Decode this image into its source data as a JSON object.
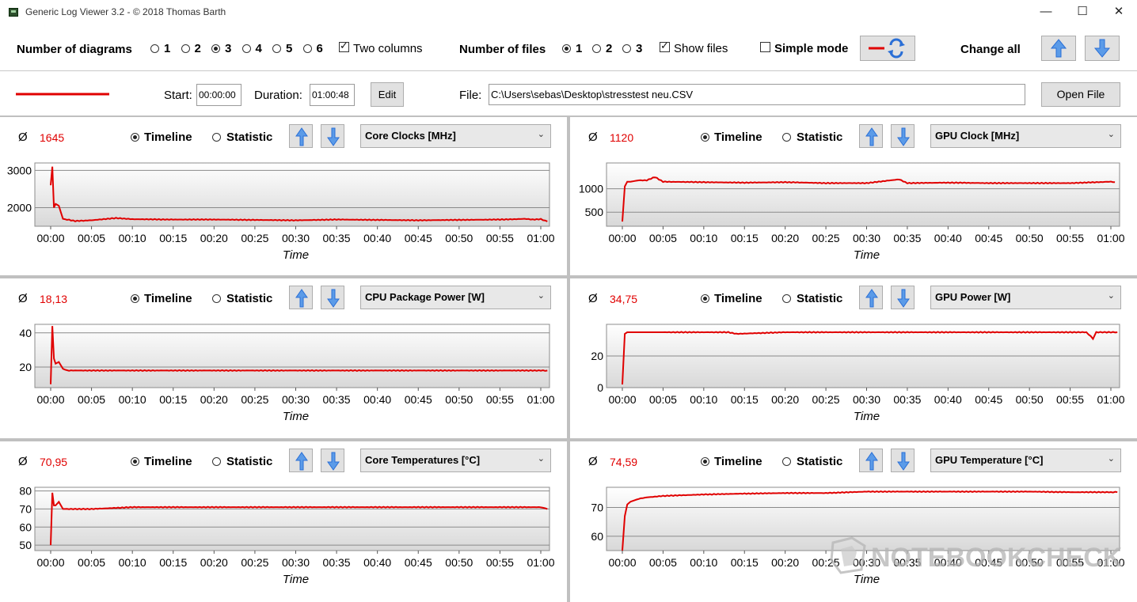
{
  "window": {
    "title": "Generic Log Viewer 3.2 - © 2018 Thomas Barth",
    "controls": [
      "—",
      "☐",
      "✕"
    ]
  },
  "toolbar": {
    "diagrams_label": "Number of diagrams",
    "diagram_options": [
      "1",
      "2",
      "3",
      "4",
      "5",
      "6"
    ],
    "diagram_selected": "3",
    "two_columns_label": "Two columns",
    "two_columns_checked": true,
    "files_label": "Number of files",
    "file_options": [
      "1",
      "2",
      "3"
    ],
    "file_selected": "1",
    "show_files_label": "Show files",
    "show_files_checked": true,
    "simple_mode_label": "Simple mode",
    "simple_mode_checked": false,
    "change_all_label": "Change all"
  },
  "file_bar": {
    "start_label": "Start:",
    "start_value": "00:00:00",
    "duration_label": "Duration:",
    "duration_value": "01:00:48",
    "edit_label": "Edit",
    "file_label": "File:",
    "file_path": "C:\\Users\\sebas\\Desktop\\stresstest neu.CSV",
    "open_label": "Open File",
    "line_color": "#e00000"
  },
  "common": {
    "avg_symbol": "Ø",
    "timeline_label": "Timeline",
    "statistic_label": "Statistic",
    "x_label": "Time",
    "x_ticks": [
      "00:00",
      "00:05",
      "00:10",
      "00:15",
      "00:20",
      "00:25",
      "00:30",
      "00:35",
      "00:40",
      "00:45",
      "00:50",
      "00:55",
      "01:00"
    ]
  },
  "panels": [
    {
      "avg": "1645",
      "sensor": "Core Clocks [MHz]",
      "chart_data": {
        "type": "line",
        "ylim": [
          1500,
          3200
        ],
        "yticks": [
          "2000",
          "3000"
        ],
        "x_minutes": [
          0,
          0.2,
          0.4,
          0.6,
          1,
          1.5,
          2,
          3,
          5,
          8,
          10,
          15,
          20,
          25,
          30,
          35,
          40,
          45,
          50,
          55,
          57,
          58,
          59,
          60,
          60.8
        ],
        "values": [
          2600,
          3100,
          2000,
          2100,
          2050,
          1700,
          1680,
          1640,
          1660,
          1720,
          1690,
          1680,
          1680,
          1670,
          1660,
          1680,
          1670,
          1660,
          1670,
          1680,
          1690,
          1700,
          1680,
          1690,
          1630
        ]
      }
    },
    {
      "avg": "1120",
      "sensor": "GPU Clock [MHz]",
      "chart_data": {
        "type": "line",
        "ylim": [
          200,
          1550
        ],
        "yticks": [
          "500",
          "1000"
        ],
        "x_minutes": [
          0,
          0.3,
          0.6,
          1,
          2,
          3,
          4,
          5,
          10,
          15,
          20,
          25,
          30,
          34,
          35,
          40,
          45,
          50,
          55,
          60,
          60.5
        ],
        "values": [
          300,
          1050,
          1150,
          1150,
          1180,
          1180,
          1250,
          1150,
          1140,
          1130,
          1140,
          1120,
          1120,
          1200,
          1120,
          1130,
          1120,
          1120,
          1120,
          1150,
          1140
        ]
      }
    },
    {
      "avg": "18,13",
      "sensor": "CPU Package Power [W]",
      "chart_data": {
        "type": "line",
        "ylim": [
          8,
          45
        ],
        "yticks": [
          "20",
          "40"
        ],
        "x_minutes": [
          0,
          0.2,
          0.4,
          0.6,
          1,
          1.5,
          2,
          5,
          10,
          15,
          20,
          25,
          30,
          35,
          40,
          45,
          50,
          55,
          60,
          60.8
        ],
        "values": [
          10,
          44,
          25,
          22,
          23,
          19,
          18,
          18,
          18,
          18,
          18,
          18,
          18,
          18,
          18,
          18,
          18,
          18,
          18,
          18
        ]
      }
    },
    {
      "avg": "34,75",
      "sensor": "GPU Power [W]",
      "chart_data": {
        "type": "line",
        "ylim": [
          0,
          40
        ],
        "yticks": [
          "0",
          "20"
        ],
        "x_minutes": [
          0,
          0.3,
          0.6,
          1,
          5,
          10,
          13,
          14,
          20,
          30,
          40,
          50,
          57,
          57.8,
          58.2,
          60,
          60.8
        ],
        "values": [
          2,
          34,
          35,
          35,
          35,
          35,
          35,
          34,
          35,
          35,
          35,
          35,
          35,
          31,
          35,
          35,
          35
        ]
      }
    },
    {
      "avg": "70,95",
      "sensor": "Core Temperatures [°C]",
      "chart_data": {
        "type": "line",
        "ylim": [
          47,
          82
        ],
        "yticks": [
          "50",
          "60",
          "70",
          "80"
        ],
        "x_minutes": [
          0,
          0.2,
          0.4,
          0.6,
          1,
          1.5,
          2,
          3,
          5,
          10,
          15,
          20,
          25,
          30,
          35,
          40,
          45,
          50,
          55,
          60,
          60.8
        ],
        "values": [
          50,
          79,
          72,
          72,
          74,
          70,
          70,
          70,
          70,
          71,
          71,
          71,
          71,
          71,
          71,
          71,
          71,
          71,
          71,
          71,
          70
        ]
      }
    },
    {
      "avg": "74,59",
      "sensor": "GPU Temperature [°C]",
      "chart_data": {
        "type": "line",
        "ylim": [
          55,
          77
        ],
        "yticks": [
          "60",
          "70"
        ],
        "x_minutes": [
          0,
          0.3,
          0.6,
          1,
          2,
          3,
          5,
          10,
          15,
          20,
          25,
          30,
          35,
          40,
          45,
          50,
          55,
          60,
          60.8
        ],
        "values": [
          55,
          67,
          71,
          72,
          73,
          73.5,
          74,
          74.5,
          74.8,
          75,
          75,
          75.5,
          75.5,
          75.5,
          75.5,
          75.5,
          75.3,
          75.3,
          75.3
        ]
      }
    }
  ],
  "watermark": {
    "text": "NOTEBOOKCHECK"
  }
}
